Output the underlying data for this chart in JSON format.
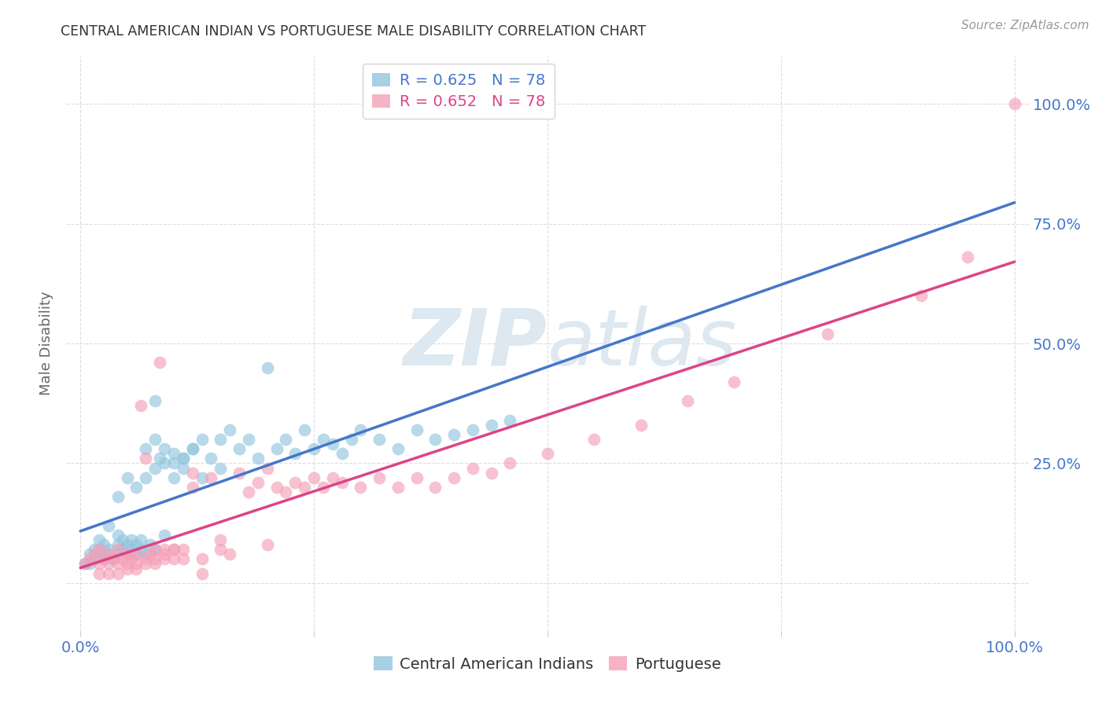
{
  "title": "CENTRAL AMERICAN INDIAN VS PORTUGUESE MALE DISABILITY CORRELATION CHART",
  "source": "Source: ZipAtlas.com",
  "ylabel": "Male Disability",
  "blue_R": 0.625,
  "blue_N": 78,
  "pink_R": 0.652,
  "pink_N": 78,
  "blue_color": "#92c5de",
  "pink_color": "#f4a0b8",
  "trend_blue_color": "#4477cc",
  "trend_pink_color": "#dd4488",
  "trend_dashed_color": "#aaaaaa",
  "watermark_color": "#dde8f0",
  "title_color": "#333333",
  "axis_label_color": "#666666",
  "tick_label_color": "#4477cc",
  "grid_color": "#dddddd",
  "background_color": "#ffffff",
  "blue_x": [
    0.005,
    0.01,
    0.015,
    0.02,
    0.02,
    0.025,
    0.025,
    0.03,
    0.03,
    0.035,
    0.04,
    0.04,
    0.04,
    0.045,
    0.045,
    0.05,
    0.05,
    0.055,
    0.055,
    0.06,
    0.06,
    0.065,
    0.065,
    0.07,
    0.07,
    0.075,
    0.08,
    0.08,
    0.085,
    0.09,
    0.09,
    0.1,
    0.1,
    0.11,
    0.11,
    0.12,
    0.13,
    0.13,
    0.14,
    0.15,
    0.15,
    0.16,
    0.17,
    0.18,
    0.19,
    0.2,
    0.21,
    0.22,
    0.23,
    0.24,
    0.25,
    0.26,
    0.27,
    0.28,
    0.29,
    0.3,
    0.32,
    0.34,
    0.36,
    0.38,
    0.4,
    0.42,
    0.44,
    0.46,
    0.07,
    0.08,
    0.09,
    0.1,
    0.11,
    0.12,
    0.05,
    0.06,
    0.04,
    0.03,
    0.02,
    0.015,
    0.01,
    0.08
  ],
  "blue_y": [
    0.04,
    0.06,
    0.05,
    0.07,
    0.06,
    0.05,
    0.08,
    0.06,
    0.07,
    0.05,
    0.08,
    0.06,
    0.1,
    0.07,
    0.09,
    0.06,
    0.08,
    0.07,
    0.09,
    0.06,
    0.08,
    0.07,
    0.09,
    0.06,
    0.22,
    0.08,
    0.24,
    0.07,
    0.26,
    0.1,
    0.28,
    0.22,
    0.25,
    0.24,
    0.26,
    0.28,
    0.22,
    0.3,
    0.26,
    0.3,
    0.24,
    0.32,
    0.28,
    0.3,
    0.26,
    0.45,
    0.28,
    0.3,
    0.27,
    0.32,
    0.28,
    0.3,
    0.29,
    0.27,
    0.3,
    0.32,
    0.3,
    0.28,
    0.32,
    0.3,
    0.31,
    0.32,
    0.33,
    0.34,
    0.28,
    0.3,
    0.25,
    0.27,
    0.26,
    0.28,
    0.22,
    0.2,
    0.18,
    0.12,
    0.09,
    0.07,
    0.04,
    0.38
  ],
  "pink_x": [
    0.005,
    0.01,
    0.015,
    0.02,
    0.02,
    0.025,
    0.03,
    0.03,
    0.035,
    0.04,
    0.04,
    0.045,
    0.05,
    0.05,
    0.055,
    0.06,
    0.06,
    0.065,
    0.07,
    0.07,
    0.075,
    0.08,
    0.08,
    0.085,
    0.09,
    0.09,
    0.1,
    0.1,
    0.11,
    0.11,
    0.12,
    0.13,
    0.14,
    0.15,
    0.16,
    0.17,
    0.18,
    0.19,
    0.2,
    0.21,
    0.22,
    0.23,
    0.24,
    0.25,
    0.26,
    0.27,
    0.28,
    0.3,
    0.32,
    0.34,
    0.36,
    0.38,
    0.4,
    0.42,
    0.44,
    0.46,
    0.5,
    0.55,
    0.6,
    0.65,
    0.7,
    0.8,
    0.9,
    0.95,
    1.0,
    0.12,
    0.15,
    0.09,
    0.08,
    0.07,
    0.06,
    0.05,
    0.04,
    0.03,
    0.02,
    0.1,
    0.13,
    0.2
  ],
  "pink_y": [
    0.04,
    0.05,
    0.06,
    0.04,
    0.07,
    0.05,
    0.04,
    0.06,
    0.05,
    0.04,
    0.07,
    0.05,
    0.04,
    0.06,
    0.05,
    0.04,
    0.06,
    0.37,
    0.05,
    0.26,
    0.06,
    0.04,
    0.07,
    0.46,
    0.05,
    0.07,
    0.05,
    0.07,
    0.05,
    0.07,
    0.2,
    0.05,
    0.22,
    0.07,
    0.06,
    0.23,
    0.19,
    0.21,
    0.08,
    0.2,
    0.19,
    0.21,
    0.2,
    0.22,
    0.2,
    0.22,
    0.21,
    0.2,
    0.22,
    0.2,
    0.22,
    0.2,
    0.22,
    0.24,
    0.23,
    0.25,
    0.27,
    0.3,
    0.33,
    0.38,
    0.42,
    0.52,
    0.6,
    0.68,
    1.0,
    0.23,
    0.09,
    0.06,
    0.05,
    0.04,
    0.03,
    0.03,
    0.02,
    0.02,
    0.02,
    0.07,
    0.02,
    0.24
  ]
}
